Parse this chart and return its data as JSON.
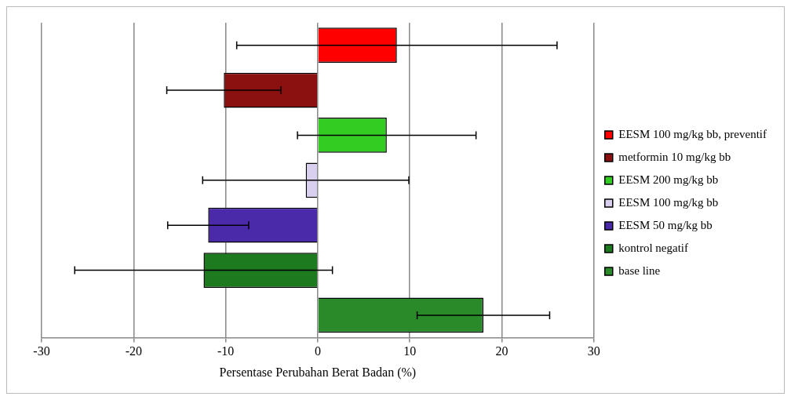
{
  "chart_data": {
    "type": "bar",
    "orientation": "horizontal",
    "xlabel": "Persentase Perubahan Berat Badan (%)",
    "categories": [
      null,
      null,
      null,
      null,
      null,
      null,
      null
    ],
    "series": [
      {
        "name": "EESM 100 mg/kg bb, preventif",
        "color": "#ff0000",
        "values": [
          8.6,
          null,
          null,
          null,
          null,
          null,
          null
        ],
        "errors": [
          17.4,
          null,
          null,
          null,
          null,
          null,
          null
        ]
      },
      {
        "name": "metformin 10 mg/kg bb",
        "color": "#8b1010",
        "values": [
          null,
          -10.2,
          null,
          null,
          null,
          null,
          null
        ],
        "errors": [
          null,
          6.2,
          null,
          null,
          null,
          null,
          null
        ]
      },
      {
        "name": "EESM 200 mg/kg bb",
        "color": "#33cc22",
        "values": [
          null,
          null,
          7.5,
          null,
          null,
          null,
          null
        ],
        "errors": [
          null,
          null,
          9.7,
          null,
          null,
          null,
          null
        ]
      },
      {
        "name": "EESM 100 mg/kg bb",
        "color": "#d8d0ee",
        "values": [
          null,
          null,
          null,
          -1.3,
          null,
          null,
          null
        ],
        "errors": [
          null,
          null,
          null,
          11.2,
          null,
          null,
          null
        ]
      },
      {
        "name": "EESM 50 mg/kg bb",
        "color": "#4a2aa8",
        "values": [
          null,
          null,
          null,
          null,
          -11.9,
          null,
          null
        ],
        "errors": [
          null,
          null,
          null,
          null,
          4.4,
          null,
          null
        ]
      },
      {
        "name": "kontrol negatif",
        "color": "#1e7a1e",
        "values": [
          null,
          null,
          null,
          null,
          null,
          -12.4,
          null
        ],
        "errors": [
          null,
          null,
          null,
          null,
          null,
          14,
          null
        ]
      },
      {
        "name": "base line",
        "color": "#2a8a2a",
        "values": [
          null,
          null,
          null,
          null,
          null,
          null,
          18
        ],
        "errors": [
          null,
          null,
          null,
          null,
          null,
          null,
          7.2
        ]
      }
    ],
    "xlim": [
      -30,
      30
    ],
    "xticks": [
      -30,
      -20,
      -10,
      0,
      10,
      20,
      30
    ],
    "grid": "x",
    "legend": "right"
  }
}
